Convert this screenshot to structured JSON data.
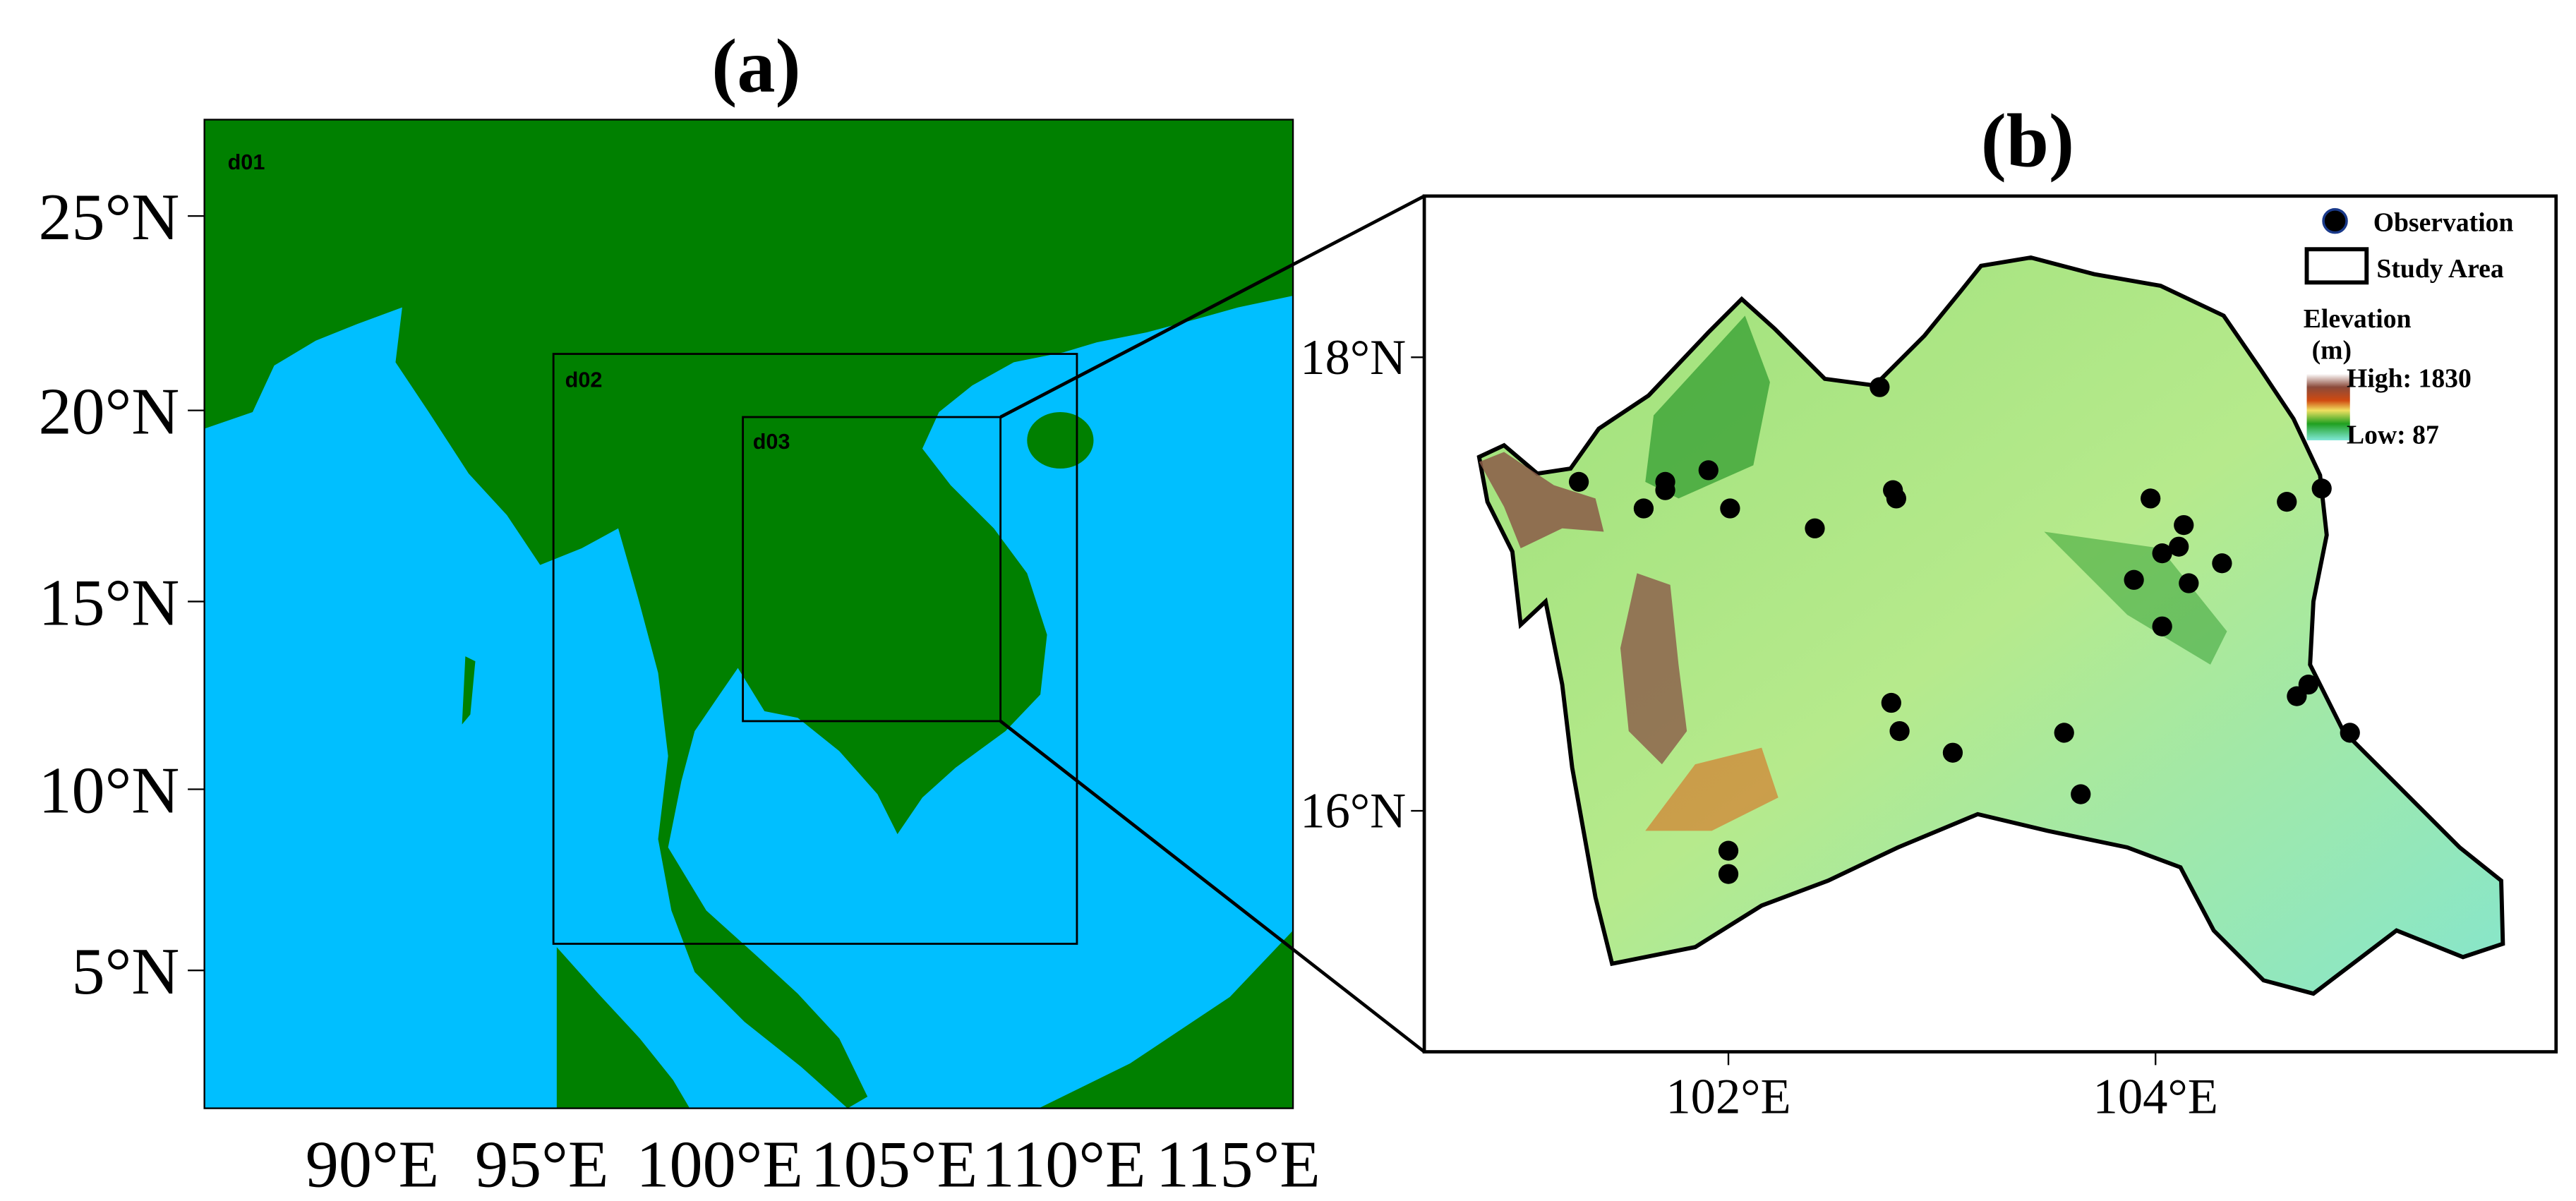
{
  "panels": [
    {
      "label": "(a)",
      "domains": [
        "d01",
        "d02",
        "d03"
      ],
      "yticks": [
        "25°N",
        "20°N",
        "15°N",
        "10°N",
        "5°N"
      ],
      "xticks": [
        "90°E",
        "95°E",
        "100°E",
        "105°E",
        "110°E",
        "115°E"
      ]
    },
    {
      "label": "(b)",
      "yticks": [
        "18°N",
        "16°N"
      ],
      "xticks": [
        "102°E",
        "104°E"
      ],
      "legend": {
        "observation": "Observation",
        "study_area": "Study Area",
        "elevation": "Elevation",
        "unit": "(m)",
        "high": "High: 1830",
        "low": "Low: 87"
      }
    }
  ]
}
